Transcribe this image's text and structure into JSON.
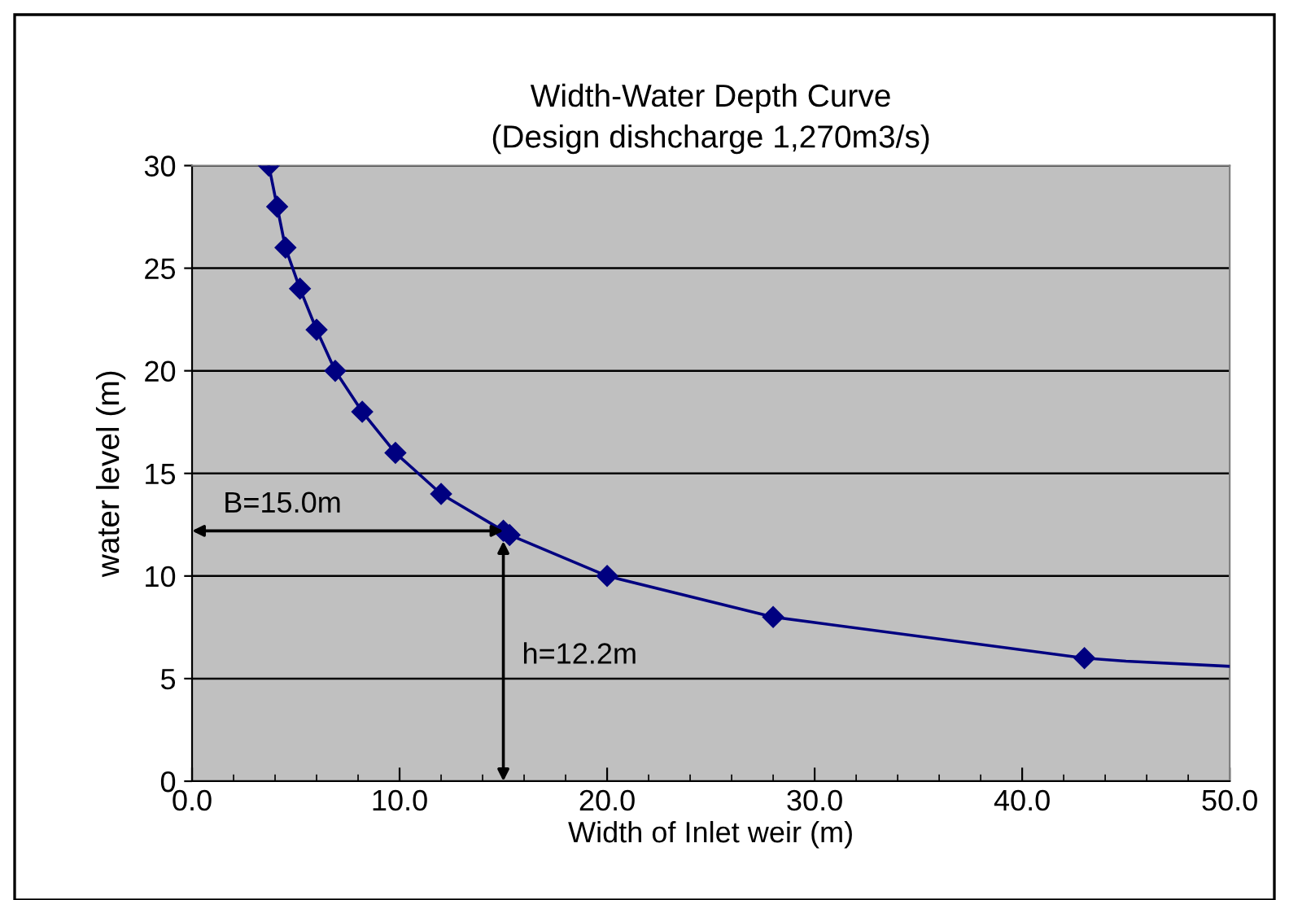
{
  "chart_data": {
    "type": "line",
    "title": "Width-Water Depth Curve\n(Design dishcharge 1,270m3/s)",
    "xlabel": "Width of Inlet weir (m)",
    "ylabel": "water level (m)",
    "series": [
      {
        "color": "#000080",
        "marker": "diamond",
        "x": [
          3.7,
          4.1,
          4.5,
          5.2,
          6.0,
          6.9,
          8.2,
          9.8,
          12.0,
          15.0,
          15.3,
          20.0,
          28.0,
          43.0
        ],
        "values": [
          30,
          28,
          26,
          24,
          22,
          20,
          18,
          16,
          14,
          12.2,
          12.0,
          10,
          8,
          6
        ]
      },
      {
        "color": "#000080",
        "marker": "none",
        "x": [
          43.0,
          45.0,
          50.0
        ],
        "values": [
          6,
          5.85,
          5.6
        ]
      }
    ],
    "annotations": [
      {
        "text": "B=15.0m",
        "x": 15.0,
        "y": 12.2
      },
      "h=12.2m"
    ],
    "xlim": [
      0,
      50
    ],
    "xticks": [
      {
        "value": 0,
        "label": "0.0"
      },
      {
        "value": 10,
        "label": "10.0"
      },
      {
        "value": 20,
        "label": "20.0"
      },
      {
        "value": 30,
        "label": "30.0"
      },
      {
        "value": 40,
        "label": "40.0"
      },
      {
        "value": 50,
        "label": "50.0"
      }
    ],
    "ylim": [
      0,
      30
    ],
    "yticks": [
      0,
      5,
      10,
      15,
      20,
      25,
      30
    ],
    "grid": "y",
    "legend": false
  }
}
